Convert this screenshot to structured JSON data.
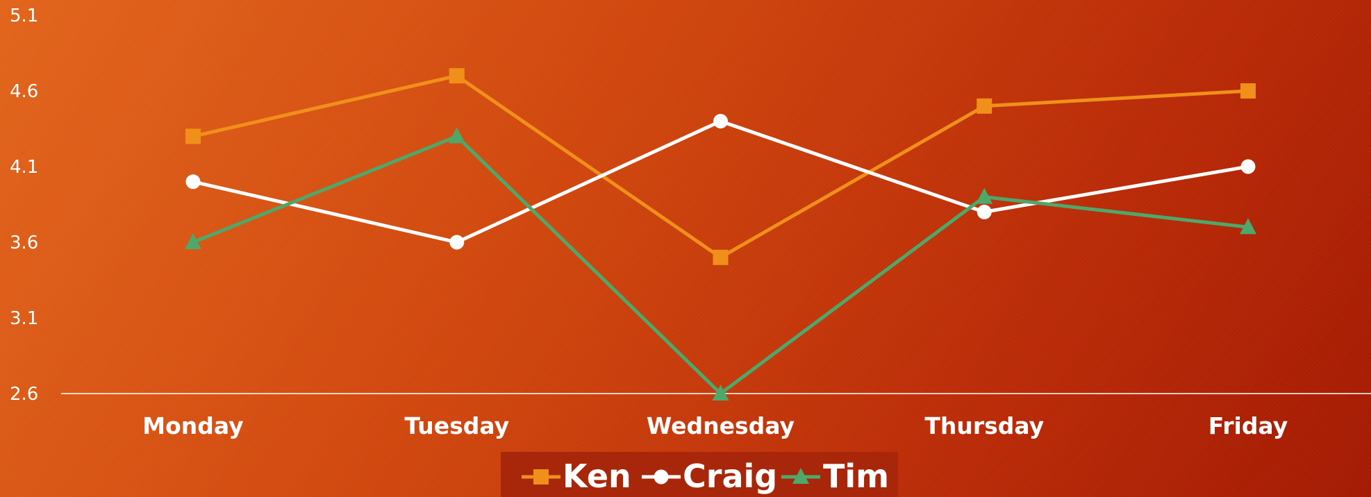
{
  "chart_data": {
    "type": "line",
    "title": "",
    "xlabel": "",
    "ylabel": "",
    "categories": [
      "Monday",
      "Tuesday",
      "Wednesday",
      "Thursday",
      "Friday"
    ],
    "ylim": [
      2.6,
      5.1
    ],
    "y_ticks": [
      "5.1",
      "4.6",
      "4.1",
      "3.6",
      "3.1",
      "2.6"
    ],
    "grid": false,
    "legend_position": "bottom",
    "series": [
      {
        "name": "Ken",
        "values": [
          4.3,
          4.7,
          3.5,
          4.5,
          4.6
        ],
        "color": "#f0901a",
        "marker": "square"
      },
      {
        "name": "Craig",
        "values": [
          4.0,
          3.6,
          4.4,
          3.8,
          4.1
        ],
        "color": "#ffffff",
        "marker": "circle"
      },
      {
        "name": "Tim",
        "values": [
          3.6,
          4.3,
          2.6,
          3.9,
          3.7
        ],
        "color": "#4ea86a",
        "marker": "triangle"
      }
    ]
  },
  "colors": {
    "axis_line": "#ffffff",
    "legend_background": "#a8260a"
  }
}
